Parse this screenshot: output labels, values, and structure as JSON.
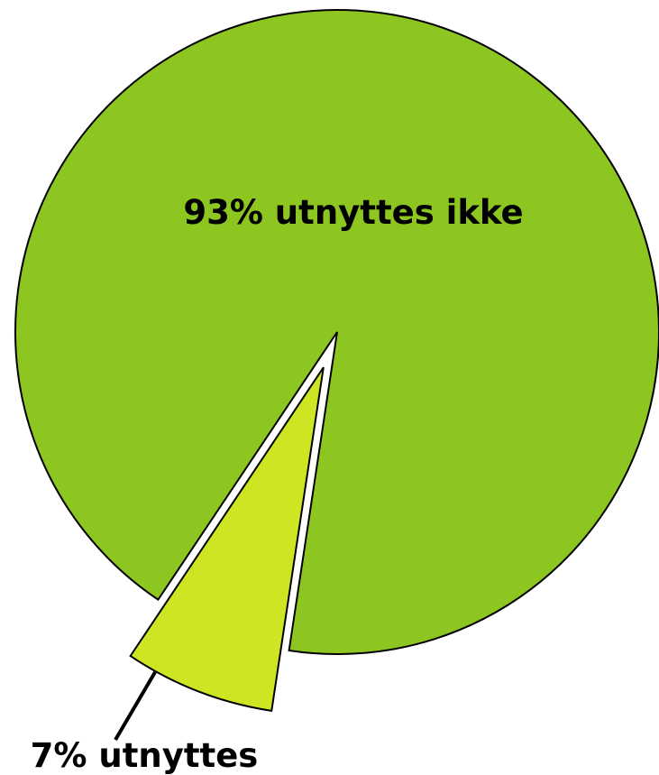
{
  "chart_data": {
    "type": "pie",
    "title": "",
    "slices": [
      {
        "label": "93% utnyttes ikke",
        "value": 93,
        "color": "#8dc620"
      },
      {
        "label": "7% utnyttes",
        "value": 7,
        "color": "#cde522"
      }
    ],
    "exploded_slice": "7% utnyttes",
    "legend": "none",
    "edge_color": "#000000"
  }
}
